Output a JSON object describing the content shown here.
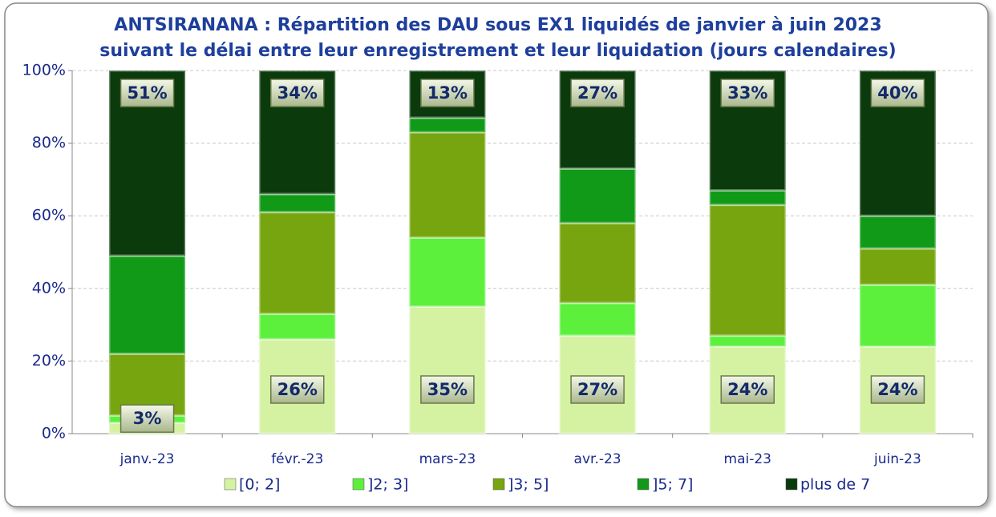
{
  "chart_data": {
    "type": "stacked_bar",
    "title": [
      "ANTSIRANANA : Répartition des DAU sous EX1 liquidés de janvier à juin 2023",
      "suivant le délai entre leur enregistrement et leur liquidation (jours calendaires)"
    ],
    "categories": [
      "janv.-23",
      "févr.-23",
      "mars-23",
      "avr.-23",
      "mai-23",
      "juin-23"
    ],
    "series": [
      {
        "name": "[0; 2]",
        "color": "#d4f2a2",
        "values": [
          3,
          26,
          35,
          27,
          24,
          24
        ],
        "value_labels": [
          "3%",
          "26%",
          "35%",
          "27%",
          "24%",
          "24%"
        ]
      },
      {
        "name": "]2; 3]",
        "color": "#5cf03c",
        "values": [
          2,
          7,
          19,
          9,
          3,
          17
        ]
      },
      {
        "name": "]3; 5]",
        "color": "#76a50f",
        "values": [
          17,
          28,
          29,
          22,
          36,
          10
        ]
      },
      {
        "name": "]5; 7]",
        "color": "#109a17",
        "values": [
          27,
          5,
          4,
          15,
          4,
          9
        ]
      },
      {
        "name": "plus de 7",
        "color": "#0b3a0c",
        "values": [
          51,
          34,
          13,
          27,
          33,
          40
        ],
        "value_labels": [
          "51%",
          "34%",
          "13%",
          "27%",
          "33%",
          "40%"
        ]
      }
    ],
    "ylim": [
      0,
      100
    ],
    "yticks": [
      {
        "value": 0,
        "label": "0%"
      },
      {
        "value": 20,
        "label": "20%"
      },
      {
        "value": 40,
        "label": "40%"
      },
      {
        "value": 60,
        "label": "60%"
      },
      {
        "value": 80,
        "label": "80%"
      },
      {
        "value": 100,
        "label": "100%"
      }
    ],
    "grid": true,
    "legend": "bottom"
  }
}
